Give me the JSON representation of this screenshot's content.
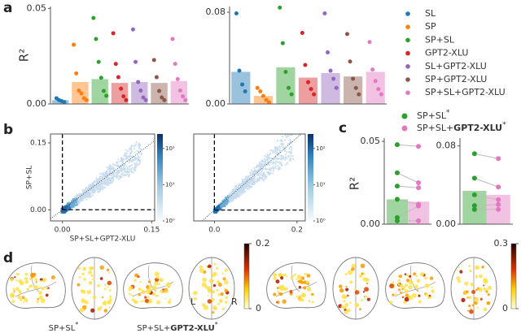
{
  "chart_data": [
    {
      "type": "bar",
      "panel": "a",
      "ylabel": "R²",
      "categories": [
        "SL",
        "SP",
        "SP+SL",
        "GPT2-XLU",
        "SL+GPT2-XLU",
        "SP+GPT2-XLU",
        "SP+SL+GPT2-XLU"
      ],
      "colors": [
        "#1f77b4",
        "#ff7f0e",
        "#2ca02c",
        "#d62728",
        "#9467bd",
        "#8c564b",
        "#e377c2"
      ],
      "values": [
        0.002,
        0.0115,
        0.013,
        0.011,
        0.0115,
        0.011,
        0.012
      ],
      "points": [
        [
          0.003,
          0.002,
          0.0015,
          0.001
        ],
        [
          0.031,
          0.016,
          0.007,
          0.0055,
          0.003,
          0.002
        ],
        [
          0.045,
          0.034,
          0.022,
          0.0137,
          0.0068,
          0.0043
        ],
        [
          0.037,
          0.021,
          0.014,
          0.008,
          0.004,
          0.002
        ],
        [
          0.039,
          0.022,
          0.0115,
          0.007,
          0.0034,
          0.002
        ],
        [
          0.023,
          0.014,
          0.0068,
          0.0034,
          0.002
        ],
        [
          0.034,
          0.021,
          0.013,
          0.007,
          0.004,
          0.002
        ]
      ],
      "ylim": [
        0,
        0.051
      ],
      "yticks": [
        {
          "value": 0,
          "label": "0.00"
        },
        0.05
      ]
    },
    {
      "type": "bar",
      "values": [
        0.028,
        0.007,
        0.032,
        0.023,
        0.027,
        0.024,
        0.028
      ],
      "points": [
        [
          0.079,
          0.029,
          0.017,
          0.011
        ],
        [
          0.014,
          0.011,
          0.007,
          0.0035,
          0.0014
        ],
        [
          0.084,
          0.053,
          0.028,
          0.014,
          0.0084
        ],
        [
          0.062,
          0.034,
          0.019,
          0.013,
          0.0084
        ],
        [
          0.079,
          0.045,
          0.029,
          0.022,
          0.014
        ],
        [
          0.061,
          0.037,
          0.022,
          0.014,
          0.0084
        ],
        [
          0.054,
          0.03,
          0.02,
          0.013,
          0.0084
        ]
      ],
      "ylim": [
        0,
        0.085
      ],
      "yticks": [
        {
          "value": 0,
          "label": "0.00"
        },
        0.08
      ]
    },
    {
      "type": "hist2d",
      "panel": "b",
      "xlabel": "SP+SL+GPT2-XLU",
      "ylabel": "SP+SL",
      "xlim": [
        -0.02,
        0.155
      ],
      "ylim": [
        -0.025,
        0.17
      ],
      "xticks": [
        {
          "value": 0,
          "label": "0.00"
        },
        0.15
      ],
      "yticks": [
        {
          "value": 0,
          "label": "0.00"
        },
        0.15
      ],
      "colorbar": {
        "scale": "log",
        "clim": [
          1,
          250
        ],
        "ticks": [
          {
            "value": 1,
            "label": "10⁰"
          },
          {
            "value": 10,
            "label": "10¹"
          },
          {
            "value": 100,
            "label": "10²"
          }
        ]
      }
    },
    {
      "type": "hist2d",
      "xlim": [
        -0.05,
        0.22
      ],
      "ylim": [
        -0.03,
        0.21
      ],
      "xticks": [
        {
          "value": 0,
          "label": "0.0"
        },
        0.2
      ],
      "colorbar": {
        "scale": "log",
        "clim": [
          1,
          250
        ],
        "ticks": [
          {
            "value": 1,
            "label": "10⁰"
          },
          {
            "value": 10,
            "label": "10¹"
          },
          {
            "value": 100,
            "label": "10²"
          }
        ]
      }
    },
    {
      "type": "paired-bar",
      "panel": "c",
      "ylabel": "R²",
      "series": [
        {
          "name_parts": [
            {
              "text": "SP+SL"
            },
            {
              "text": "*",
              "sup": true
            }
          ],
          "color": "#2ca02c",
          "value": 0.015,
          "points": [
            0.048,
            0.031,
            0.023,
            0.015,
            0.004,
            0.002
          ]
        },
        {
          "name_parts": [
            {
              "text": "SP+SL+"
            },
            {
              "text": "GPT2-XLU",
              "bold": true
            },
            {
              "text": "*",
              "sup": true
            }
          ],
          "color": "#e377c2",
          "value": 0.0136,
          "points": [
            0.047,
            0.025,
            0.022,
            0.012,
            0.011,
            0.002
          ]
        }
      ],
      "ylim": [
        0,
        0.052
      ],
      "yticks": [
        {
          "value": 0,
          "label": "0.00"
        },
        0.05
      ]
    },
    {
      "type": "paired-bar",
      "series": [
        {
          "value": 0.034,
          "points": [
            0.072,
            0.047,
            0.03,
            0.019,
            0.015
          ]
        },
        {
          "value": 0.03,
          "points": [
            0.067,
            0.038,
            0.025,
            0.02,
            0.015
          ]
        }
      ],
      "ylim": [
        0,
        0.088
      ],
      "yticks": [
        {
          "value": 0,
          "label": "0.00"
        },
        0.08
      ]
    },
    {
      "type": "brain-map",
      "panel": "d",
      "captions": [
        [
          {
            "text": "SP+SL"
          },
          {
            "text": "*",
            "sup": true
          }
        ],
        [
          {
            "text": "SP+SL+"
          },
          {
            "text": "GPT2-XLU",
            "bold": true
          },
          {
            "text": "*",
            "sup": true
          }
        ]
      ],
      "hemisphere_labels": [
        "L",
        "R"
      ],
      "colorbar": {
        "clim": [
          0,
          0.2
        ],
        "ticks": [
          0,
          0.2
        ]
      }
    },
    {
      "type": "brain-map",
      "colorbar": {
        "clim": [
          0,
          0.3
        ],
        "ticks": [
          0,
          0.3
        ]
      }
    }
  ]
}
